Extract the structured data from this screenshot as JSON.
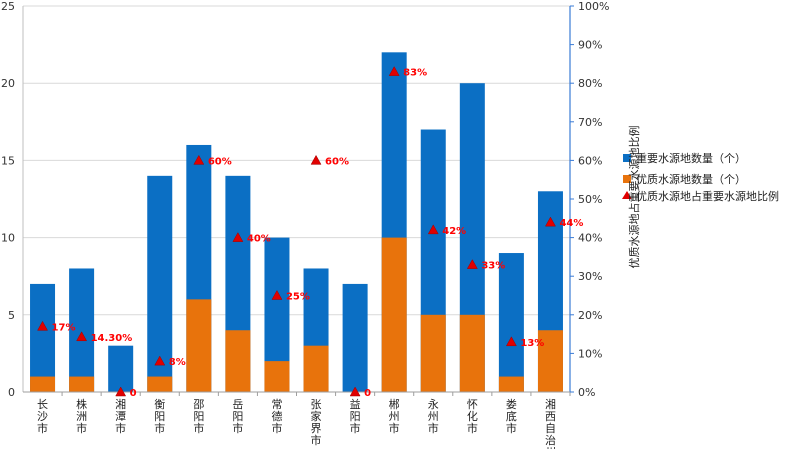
{
  "chart_data": {
    "type": "bar",
    "stacked": false,
    "categories": [
      "长沙市",
      "株洲市",
      "湘潭市",
      "衡阳市",
      "邵阳市",
      "岳阳市",
      "常德市",
      "张家界市",
      "益阳市",
      "郴州市",
      "永州市",
      "怀化市",
      "娄底市",
      "湘西自治州"
    ],
    "series": [
      {
        "name": "重要水源地数量（个）",
        "values": [
          7,
          8,
          3,
          14,
          16,
          14,
          10,
          8,
          7,
          22,
          17,
          20,
          9,
          13
        ],
        "color": "#0b6fc4"
      },
      {
        "name": "优质水源地数量（个）",
        "values": [
          1,
          1,
          0,
          1,
          6,
          4,
          2,
          3,
          0,
          10,
          5,
          5,
          1,
          4
        ],
        "color": "#e8730c"
      },
      {
        "name": "优质水源地占重要水源地比例",
        "values": [
          17,
          14.3,
          0,
          8,
          60,
          40,
          25,
          60,
          0,
          83,
          42,
          33,
          13,
          44
        ],
        "type": "scatter",
        "axis": "right",
        "color": "#e00000"
      }
    ],
    "point_labels": [
      "17%",
      "14.30%",
      "0",
      "8%",
      "60%",
      "40%",
      "25%",
      "60%",
      "0",
      "83%",
      "42%",
      "33%",
      "13%",
      "44%"
    ],
    "ylim_left": [
      0,
      25
    ],
    "yticks_left": [
      0,
      5,
      10,
      15,
      20,
      25
    ],
    "ylim_right": [
      0,
      100
    ],
    "yticks_right": [
      "0%",
      "10%",
      "20%",
      "30%",
      "40%",
      "50%",
      "60%",
      "70%",
      "80%",
      "90%",
      "100%"
    ],
    "ylabel_right": "优质水源地占重要水源地比例",
    "legend_position": "right"
  }
}
